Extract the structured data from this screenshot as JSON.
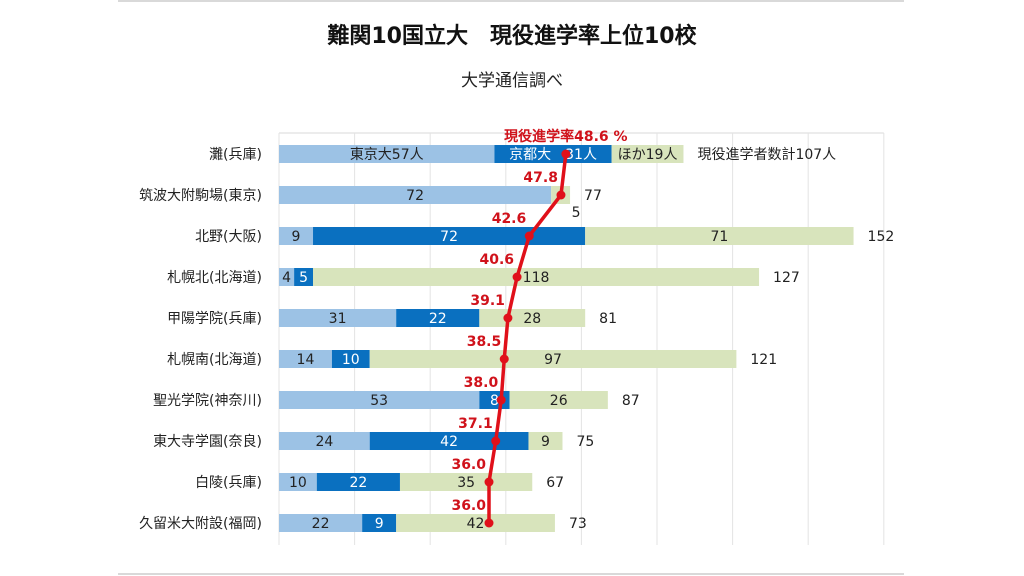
{
  "title": "難関10国立大　現役進学率上位10校",
  "subtitle": "大学通信調べ",
  "colors": {
    "tokyo": "#9cc2e5",
    "kyoto": "#0a70c0",
    "other": "#d8e4bc",
    "rate": "#e0101a",
    "grid": "#e3e3e3"
  },
  "chart_data": {
    "type": "bar",
    "orientation": "horizontal-stacked",
    "title": "難関10国立大　現役進学率上位10校",
    "subtitle": "大学通信調べ",
    "categories": [
      "灘(兵庫)",
      "筑波大附駒場(東京)",
      "北野(大阪)",
      "札幌北(北海道)",
      "甲陽学院(兵庫)",
      "札幌南(北海道)",
      "聖光学院(神奈川)",
      "東大寺学園(奈良)",
      "白陵(兵庫)",
      "久留米大附設(福岡)"
    ],
    "series": [
      {
        "name": "東京大",
        "values": [
          57,
          72,
          9,
          4,
          31,
          14,
          53,
          24,
          10,
          22
        ]
      },
      {
        "name": "京都大",
        "values": [
          31,
          0,
          72,
          5,
          22,
          10,
          8,
          42,
          22,
          9
        ]
      },
      {
        "name": "ほか",
        "values": [
          19,
          5,
          71,
          118,
          28,
          97,
          26,
          9,
          35,
          42
        ]
      }
    ],
    "totals": [
      107,
      77,
      152,
      127,
      81,
      121,
      87,
      75,
      67,
      73
    ],
    "rate_series": {
      "name": "現役進学率",
      "type": "line",
      "values": [
        48.6,
        47.8,
        42.6,
        40.6,
        39.1,
        38.5,
        38.0,
        37.1,
        36.0,
        36.0
      ],
      "labels": [
        "48.6",
        "47.8",
        "42.6",
        "40.6",
        "39.1",
        "38.5",
        "38.0",
        "37.1",
        "36.0",
        "36.0"
      ]
    },
    "first_row_labels": {
      "tokyo": "東京大57人",
      "kyoto": "京都大　31人",
      "other": "ほか19人",
      "total": "現役進学者数計107人",
      "rate": "現役進学率48.6 %"
    },
    "xlim": [
      0,
      160
    ],
    "grid_step": 20,
    "grid": true,
    "legend": "none"
  }
}
